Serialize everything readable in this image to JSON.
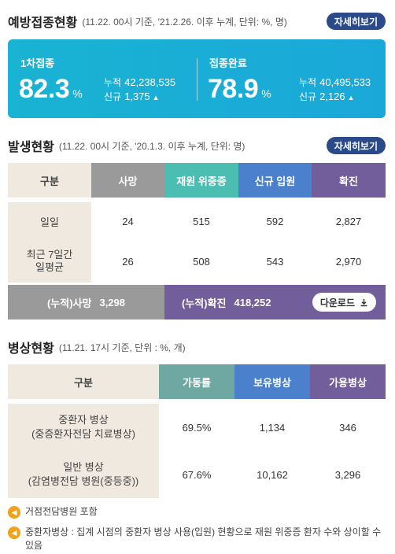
{
  "vaccination": {
    "title": "예방접종현황",
    "subtitle": "(11.22. 00시 기준, '21.2.26. 이후 누계, 단위: %, 명)",
    "detail_button": "자세히보기",
    "first": {
      "label": "1차접종",
      "percent": "82.3",
      "percent_unit": "%",
      "cum_label": "누적",
      "cum_value": "42,238,535",
      "new_label": "신규",
      "new_value": "1,375",
      "trend_icon": "triangle-up-icon"
    },
    "complete": {
      "label": "접종완료",
      "percent": "78.9",
      "percent_unit": "%",
      "cum_label": "누적",
      "cum_value": "40,495,533",
      "new_label": "신규",
      "new_value": "2,126",
      "trend_icon": "triangle-up-icon"
    }
  },
  "occurrence": {
    "title": "발생현황",
    "subtitle": "(11.22. 00시 기준, '20.1.3. 이후 누계, 단위: 명)",
    "detail_button": "자세히보기",
    "headers": [
      "구분",
      "사망",
      "재원 위중증",
      "신규 입원",
      "확진"
    ],
    "rows": [
      {
        "label": "일일",
        "values": [
          "24",
          "515",
          "592",
          "2,827"
        ]
      },
      {
        "label": "최근 7일간\n일평균",
        "values": [
          "26",
          "508",
          "543",
          "2,970"
        ]
      }
    ],
    "cumulative": {
      "death_label": "(누적)사망",
      "death_value": "3,298",
      "conf_label": "(누적)확진",
      "conf_value": "418,252",
      "download_label": "다운로드",
      "download_icon": "download-icon"
    }
  },
  "beds": {
    "title": "병상현황",
    "subtitle": "(11.21. 17시 기준, 단위 : %, 개)",
    "headers": [
      "구분",
      "가동률",
      "보유병상",
      "가용병상"
    ],
    "rows": [
      {
        "label": "중환자 병상\n(중증환자전담 치료병상)",
        "values": [
          "69.5%",
          "1,134",
          "346"
        ]
      },
      {
        "label": "일반 병상\n(감염병전담 병원(중등중))",
        "values": [
          "67.6%",
          "10,162",
          "3,296"
        ]
      }
    ]
  },
  "notes": [
    {
      "icon": "speaker-icon",
      "text": "거점전담병원 포함"
    },
    {
      "icon": "speaker-icon",
      "text": "중환자병상 : 집계 시점의 중환자 병상 사용(입원) 현황으로 재원 위중증 환자 수와 상이할 수 있음"
    }
  ],
  "colors": {
    "vax_bg": "#1aa8d8",
    "death": "#9a9a9a",
    "severe": "#4cbdb1",
    "new_admission": "#4a80cc",
    "confirmed": "#735e9c",
    "occupancy": "#6fa7a3",
    "button": "#2a4a8a",
    "note_icon": "#f0a21a"
  }
}
